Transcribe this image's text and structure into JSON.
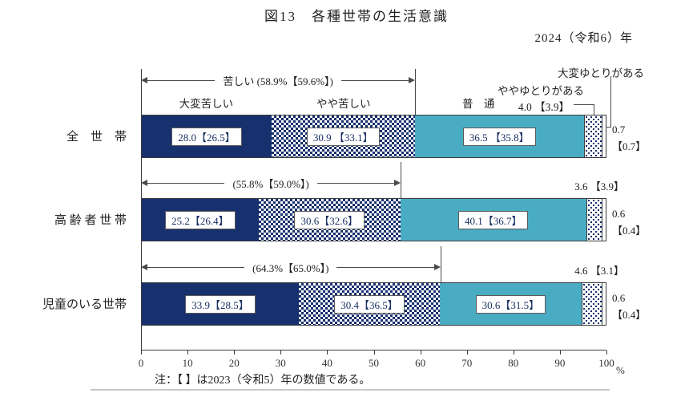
{
  "title": "図13　各種世帯の生活意識",
  "year_label": "2024（令和6）年",
  "note": "注：【 】は2023（令和5）年の数値である。",
  "legend": {
    "very_hard": "大変苦しい",
    "somewhat_hard": "やや苦しい",
    "normal": "普　通",
    "somewhat_comfortable": "ややゆとりがある",
    "somewhat_comfortable_value": "4.0 【3.9】",
    "very_comfortable": "大変ゆとりがある"
  },
  "chart_data": {
    "type": "bar",
    "orientation": "horizontal",
    "stacked": true,
    "unit": "%",
    "xlim": [
      0,
      100
    ],
    "x_ticks": [
      0,
      10,
      20,
      30,
      40,
      50,
      60,
      70,
      80,
      90,
      100
    ],
    "series_names": [
      "大変苦しい",
      "やや苦しい",
      "普通",
      "ややゆとりがある",
      "大変ゆとりがある"
    ],
    "colors": {
      "very_hard": "#17306e",
      "somewhat_hard": "checker #17306e on #ffffff",
      "normal": "#4aacc2",
      "somewhat_comfortable": "dots #17306e on #ffffff",
      "very_comfortable": "#ffffff"
    },
    "rows": [
      {
        "category": "全　世　帯",
        "values": [
          28.0,
          30.9,
          36.5,
          4.0,
          0.7
        ],
        "values_2023": [
          26.5,
          33.1,
          35.8,
          3.9,
          0.7
        ],
        "labels": [
          "28.0【26.5】",
          "30.9 【33.1】",
          "36.5 【35.8】"
        ],
        "bracket_text": "苦しい (58.9%【59.6%】)",
        "bracket_value": 58.9,
        "right_label": [
          "0.7",
          "【0.7】"
        ]
      },
      {
        "category": "高 齢 者 世 帯",
        "values": [
          25.2,
          30.6,
          40.1,
          3.6,
          0.6
        ],
        "values_2023": [
          26.4,
          32.6,
          36.7,
          3.9,
          0.4
        ],
        "labels": [
          "25.2【26.4】",
          "30.6【32.6】",
          "40.1【36.7】"
        ],
        "bracket_text": "(55.8%【59.0%】)",
        "bracket_value": 55.8,
        "comfort_label": "3.6 【3.9】",
        "right_label": [
          "0.6",
          "【0.4】"
        ]
      },
      {
        "category": "児童のいる世帯",
        "values": [
          33.9,
          30.4,
          30.6,
          4.6,
          0.6
        ],
        "values_2023": [
          28.5,
          36.5,
          31.5,
          3.1,
          0.4
        ],
        "labels": [
          "33.9【28.5】",
          "30.4【36.5】",
          "30.6【31.5】"
        ],
        "bracket_text": "(64.3%【65.0%】)",
        "bracket_value": 64.3,
        "comfort_label": "4.6 【3.1】",
        "right_label": [
          "0.6",
          "【0.4】"
        ]
      }
    ]
  }
}
